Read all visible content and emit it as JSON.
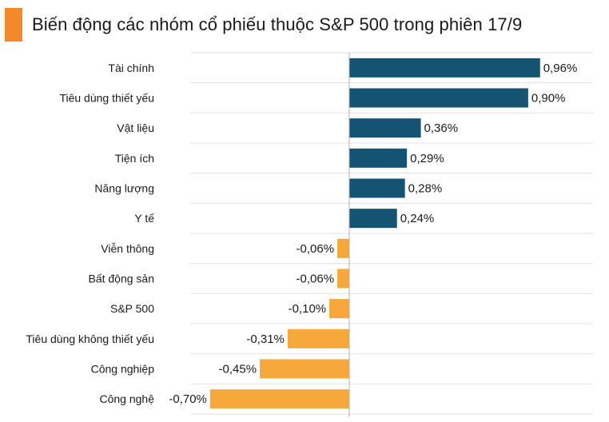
{
  "chart_data": {
    "type": "bar",
    "orientation": "horizontal",
    "title": "Biến động các nhóm cổ phiếu thuộc S&P 500 trong phiên 17/9",
    "categories": [
      "Tài chính",
      "Tiêu dùng thiết yếu",
      "Vật liệu",
      "Tiện ích",
      "Năng lượng",
      "Y tế",
      "Viễn thông",
      "Bất động sản",
      "S&P 500",
      "Tiêu dùng không thiết yếu",
      "Công nghiệp",
      "Công nghệ"
    ],
    "values": [
      0.96,
      0.9,
      0.36,
      0.29,
      0.28,
      0.24,
      -0.06,
      -0.06,
      -0.1,
      -0.31,
      -0.45,
      -0.7
    ],
    "value_labels": [
      "0,96%",
      "0,90%",
      "0,36%",
      "0,29%",
      "0,28%",
      "0,24%",
      "-0,06%",
      "-0,06%",
      "-0,10%",
      "-0,31%",
      "-0,45%",
      "-0,70%"
    ],
    "xlim": [
      -0.8,
      1.2
    ],
    "grid": true,
    "colors": {
      "positive": "#145372",
      "negative": "#f7a83a",
      "accent": "#f4892a",
      "grid": "#e3e3e3",
      "axis": "#b0b0b0"
    }
  }
}
